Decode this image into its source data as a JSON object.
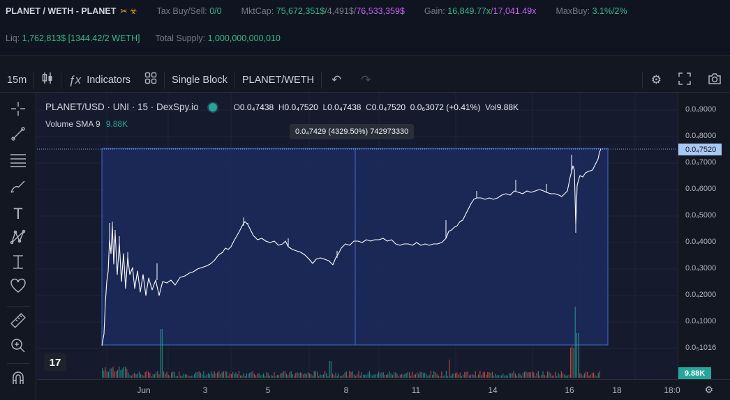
{
  "info": {
    "pair": "PLANET / WETH - PLANET",
    "tax_label": "Tax Buy/Sell:",
    "tax_value": "0/0",
    "mcap_label": "MktCap:",
    "mcap_value1": "75,672,351$",
    "mcap_sep": "/4,491$/",
    "mcap_value2": "76,533,359$",
    "gain_label": "Gain:",
    "gain_value1": "16,849.77x",
    "gain_sep": "/",
    "gain_value2": "17,041.49x",
    "maxbuy_label": "MaxBuy:",
    "maxbuy_value": "3.1%/2%",
    "liq_label": "Liq:",
    "liq_value": "1,762,813$ [1344.42/2 WETH]",
    "supply_label": "Total Supply:",
    "supply_value": "1,000,000,000,010"
  },
  "toolbar": {
    "interval": "15m",
    "indicators": "Indicators",
    "single_block": "Single Block",
    "pair": "PLANET/WETH"
  },
  "legend": {
    "title": "PLANET/USD · UNI · 15 · DexSpy.io",
    "o_label": "O",
    "o_value": "0.0₄7438",
    "h_label": "H",
    "h_value": "0.0₄7520",
    "l_label": "L",
    "l_value": "0.0₄7438",
    "c_label": "C",
    "c_value": "0.0₄7520",
    "change": "0.0₆3072 (+0.41%)",
    "vol_label": "Vol",
    "vol_value": "9.88K",
    "vol_sma_label": "Volume SMA 9",
    "vol_sma_value": "9.88K"
  },
  "measure_tooltip": "0.0₄7429 (4329.50%) 742973330",
  "price_axis": {
    "ticks": [
      "0.0₄9000",
      "0.0₄8000",
      "0.0₄7000",
      "0.0₄6000",
      "0.0₄5000",
      "0.0₄4000",
      "0.0₄3000",
      "0.0₄2000",
      "0.0₄1000",
      "0.0₅1016"
    ],
    "last_price": "0.0₄7520",
    "volume_tag": "9.88K"
  },
  "time_axis": {
    "labels": [
      "Jun",
      "3",
      "5",
      "8",
      "11",
      "14",
      "16",
      "18",
      "18:0"
    ]
  },
  "colors": {
    "up": "#26a69a",
    "down": "#ef5350",
    "measure_fill": "#1c2a5e",
    "measure_line": "#3d6bd6",
    "price_tag": "#a8c8f4"
  }
}
